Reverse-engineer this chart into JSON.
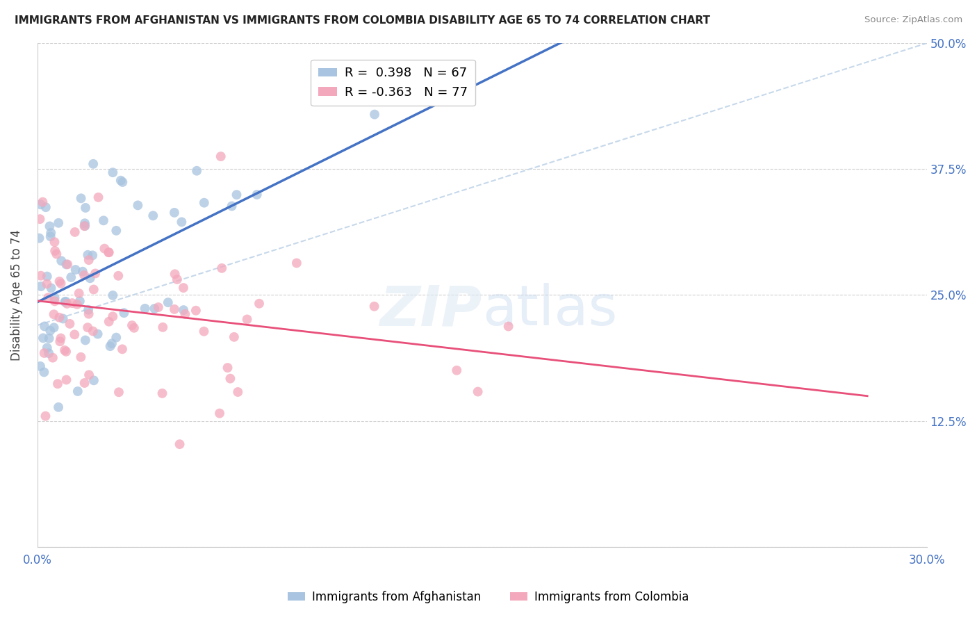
{
  "title": "IMMIGRANTS FROM AFGHANISTAN VS IMMIGRANTS FROM COLOMBIA DISABILITY AGE 65 TO 74 CORRELATION CHART",
  "source": "Source: ZipAtlas.com",
  "ylabel": "Disability Age 65 to 74",
  "x_min": 0.0,
  "x_max": 0.3,
  "y_min": 0.0,
  "y_max": 0.5,
  "y_ticks": [
    0.0,
    0.125,
    0.25,
    0.375,
    0.5
  ],
  "y_tick_labels_right": [
    "",
    "12.5%",
    "25.0%",
    "37.5%",
    "50.0%"
  ],
  "afghanistan_R": 0.398,
  "afghanistan_N": 67,
  "colombia_R": -0.363,
  "colombia_N": 77,
  "afghanistan_color": "#a8c4e0",
  "colombia_color": "#f4a8bc",
  "afghanistan_line_color": "#4472c4",
  "colombia_line_color": "#e8507a",
  "diagonal_line_color": "#c0d4e8",
  "afghanistan_seed": 101,
  "colombia_seed": 202,
  "marker_size": 100,
  "marker_alpha": 0.75
}
